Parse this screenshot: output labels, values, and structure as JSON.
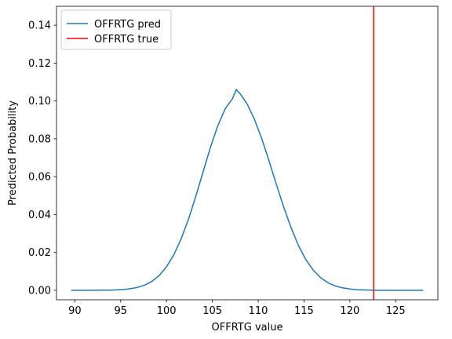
{
  "chart_data": {
    "type": "line",
    "xlabel": "OFFRTG value",
    "ylabel": "Predicted Probability",
    "xlim": [
      88.0,
      129.6
    ],
    "ylim": [
      -0.005,
      0.15
    ],
    "x_ticks": [
      90,
      95,
      100,
      105,
      110,
      115,
      120,
      125
    ],
    "y_ticks": [
      0.0,
      0.02,
      0.04,
      0.06,
      0.08,
      0.1,
      0.12,
      0.14
    ],
    "x_tick_labels": [
      "90",
      "95",
      "100",
      "105",
      "110",
      "115",
      "120",
      "125"
    ],
    "y_tick_labels": [
      "0.00",
      "0.02",
      "0.04",
      "0.06",
      "0.08",
      "0.10",
      "0.12",
      "0.14"
    ],
    "grid": false,
    "legend_position": "top-left",
    "series": [
      {
        "name": "OFFRTG pred",
        "color": "#1f77b4",
        "points": [
          [
            89.6,
            0.0
          ],
          [
            90.4,
            0.0
          ],
          [
            91.2,
            0.0
          ],
          [
            92.0,
            0.0
          ],
          [
            92.8,
            0.0001
          ],
          [
            93.6,
            0.0001
          ],
          [
            94.4,
            0.0002
          ],
          [
            95.2,
            0.0004
          ],
          [
            96.0,
            0.0008
          ],
          [
            96.8,
            0.0015
          ],
          [
            97.6,
            0.0027
          ],
          [
            98.4,
            0.0047
          ],
          [
            99.2,
            0.0078
          ],
          [
            100.0,
            0.0124
          ],
          [
            100.8,
            0.0188
          ],
          [
            101.6,
            0.0272
          ],
          [
            102.4,
            0.0376
          ],
          [
            103.2,
            0.0497
          ],
          [
            104.0,
            0.0627
          ],
          [
            104.8,
            0.0756
          ],
          [
            105.6,
            0.087
          ],
          [
            106.4,
            0.0959
          ],
          [
            107.2,
            0.1012
          ],
          [
            107.6,
            0.106
          ],
          [
            108.0,
            0.104
          ],
          [
            108.8,
            0.0984
          ],
          [
            109.6,
            0.0902
          ],
          [
            110.4,
            0.0799
          ],
          [
            111.2,
            0.0681
          ],
          [
            112.0,
            0.0557
          ],
          [
            112.8,
            0.0437
          ],
          [
            113.6,
            0.0329
          ],
          [
            114.4,
            0.0236
          ],
          [
            115.2,
            0.0162
          ],
          [
            116.0,
            0.0107
          ],
          [
            116.8,
            0.0067
          ],
          [
            117.6,
            0.004
          ],
          [
            118.4,
            0.0023
          ],
          [
            119.2,
            0.0013
          ],
          [
            120.0,
            0.0007
          ],
          [
            120.8,
            0.0003
          ],
          [
            121.6,
            0.0002
          ],
          [
            122.4,
            0.0001
          ],
          [
            123.2,
            0.0
          ],
          [
            124.0,
            0.0
          ],
          [
            124.8,
            0.0
          ],
          [
            125.6,
            0.0
          ],
          [
            126.4,
            0.0
          ],
          [
            127.2,
            0.0
          ],
          [
            128.0,
            0.0
          ]
        ]
      },
      {
        "name": "OFFRTG true",
        "color": "#ff0000",
        "vline_x": 122.6
      }
    ]
  }
}
